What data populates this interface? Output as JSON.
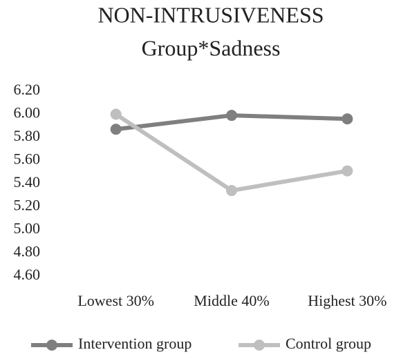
{
  "chart_data": {
    "type": "line",
    "title": "NON-INTRUSIVENESS",
    "subtitle": "Group*Sadness",
    "categories": [
      "Lowest 30%",
      "Middle 40%",
      "Highest 30%"
    ],
    "series": [
      {
        "name": "Intervention group",
        "color": "#7f7f7f",
        "values": [
          5.87,
          5.99,
          5.96
        ]
      },
      {
        "name": "Control group",
        "color": "#bfbfbf",
        "values": [
          6.0,
          5.34,
          5.51
        ]
      }
    ],
    "ylim": [
      4.6,
      6.2
    ],
    "yticks": [
      {
        "value": 4.6,
        "label": "4.60"
      },
      {
        "value": 4.8,
        "label": "4.80"
      },
      {
        "value": 5.0,
        "label": "5.00"
      },
      {
        "value": 5.2,
        "label": "5.20"
      },
      {
        "value": 5.4,
        "label": "5.40"
      },
      {
        "value": 5.6,
        "label": "5.60"
      },
      {
        "value": 5.8,
        "label": "5.80"
      },
      {
        "value": 6.0,
        "label": "6.00"
      },
      {
        "value": 6.2,
        "label": "6.20"
      }
    ],
    "grid": false,
    "legend": "bottom"
  }
}
